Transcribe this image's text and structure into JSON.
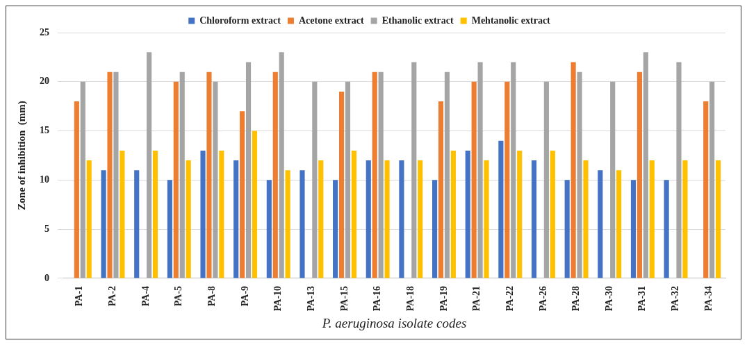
{
  "chart_data": {
    "type": "bar",
    "xlabel": "P. aeruginosa isolate codes",
    "ylabel": "Zone of inhibition  (mm)",
    "categories": [
      "PA-1",
      "PA-2",
      "PA-4",
      "PA-5",
      "PA-8",
      "PA-9",
      "PA-10",
      "PA-13",
      "PA-15",
      "PA-16",
      "PA-18",
      "PA-19",
      "PA-21",
      "PA-22",
      "PA-26",
      "PA-28",
      "PA-30",
      "PA-31",
      "PA-32",
      "PA-34"
    ],
    "series": [
      {
        "name": "Chloroform extract",
        "color": "#4472c4",
        "values": [
          null,
          11,
          11,
          10,
          13,
          12,
          10,
          11,
          10,
          12,
          12,
          10,
          13,
          14,
          12,
          10,
          11,
          10,
          10,
          null
        ]
      },
      {
        "name": "Acetone extract",
        "color": "#ed7d31",
        "values": [
          18,
          21,
          null,
          20,
          21,
          17,
          21,
          null,
          19,
          21,
          null,
          18,
          20,
          20,
          null,
          22,
          null,
          21,
          null,
          18
        ]
      },
      {
        "name": "Ethanolic extract",
        "color": "#a5a5a5",
        "values": [
          20,
          21,
          23,
          21,
          20,
          22,
          23,
          20,
          20,
          21,
          22,
          21,
          22,
          22,
          20,
          21,
          20,
          23,
          22,
          20
        ]
      },
      {
        "name": "Mehtanolic extract",
        "color": "#ffc000",
        "values": [
          12,
          13,
          13,
          12,
          13,
          15,
          11,
          12,
          13,
          12,
          12,
          13,
          12,
          13,
          13,
          12,
          11,
          12,
          12,
          12
        ]
      }
    ],
    "ylim": [
      0,
      25
    ],
    "yticks": [
      0,
      5,
      10,
      15,
      20,
      25
    ],
    "grid": "y",
    "legend": "top"
  }
}
